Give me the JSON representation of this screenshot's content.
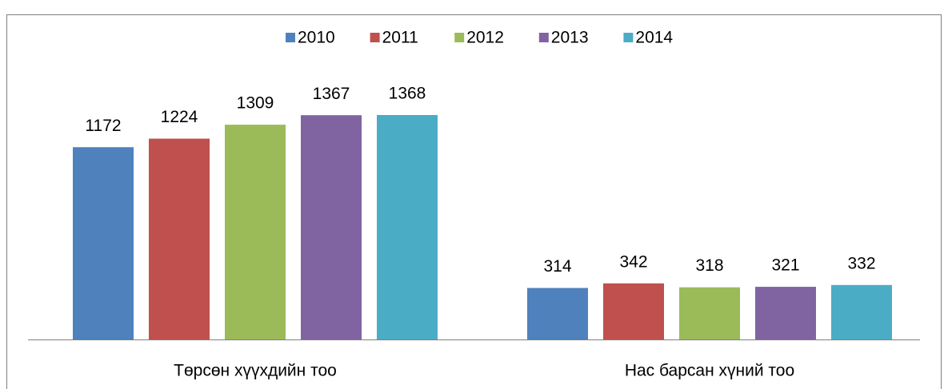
{
  "chart_data": {
    "type": "bar",
    "categories": [
      "Төрсөн хүүхдийн тоо",
      "Нас барсан хүний тоо"
    ],
    "series": [
      {
        "name": "2010",
        "color": "#4f81bd",
        "values": [
          1172,
          314
        ]
      },
      {
        "name": "2011",
        "color": "#c0504d",
        "values": [
          1224,
          342
        ]
      },
      {
        "name": "2012",
        "color": "#9bbb59",
        "values": [
          1309,
          318
        ]
      },
      {
        "name": "2013",
        "color": "#8064a2",
        "values": [
          1367,
          321
        ]
      },
      {
        "name": "2014",
        "color": "#4bacc6",
        "values": [
          1368,
          332
        ]
      }
    ],
    "legend": "top"
  }
}
